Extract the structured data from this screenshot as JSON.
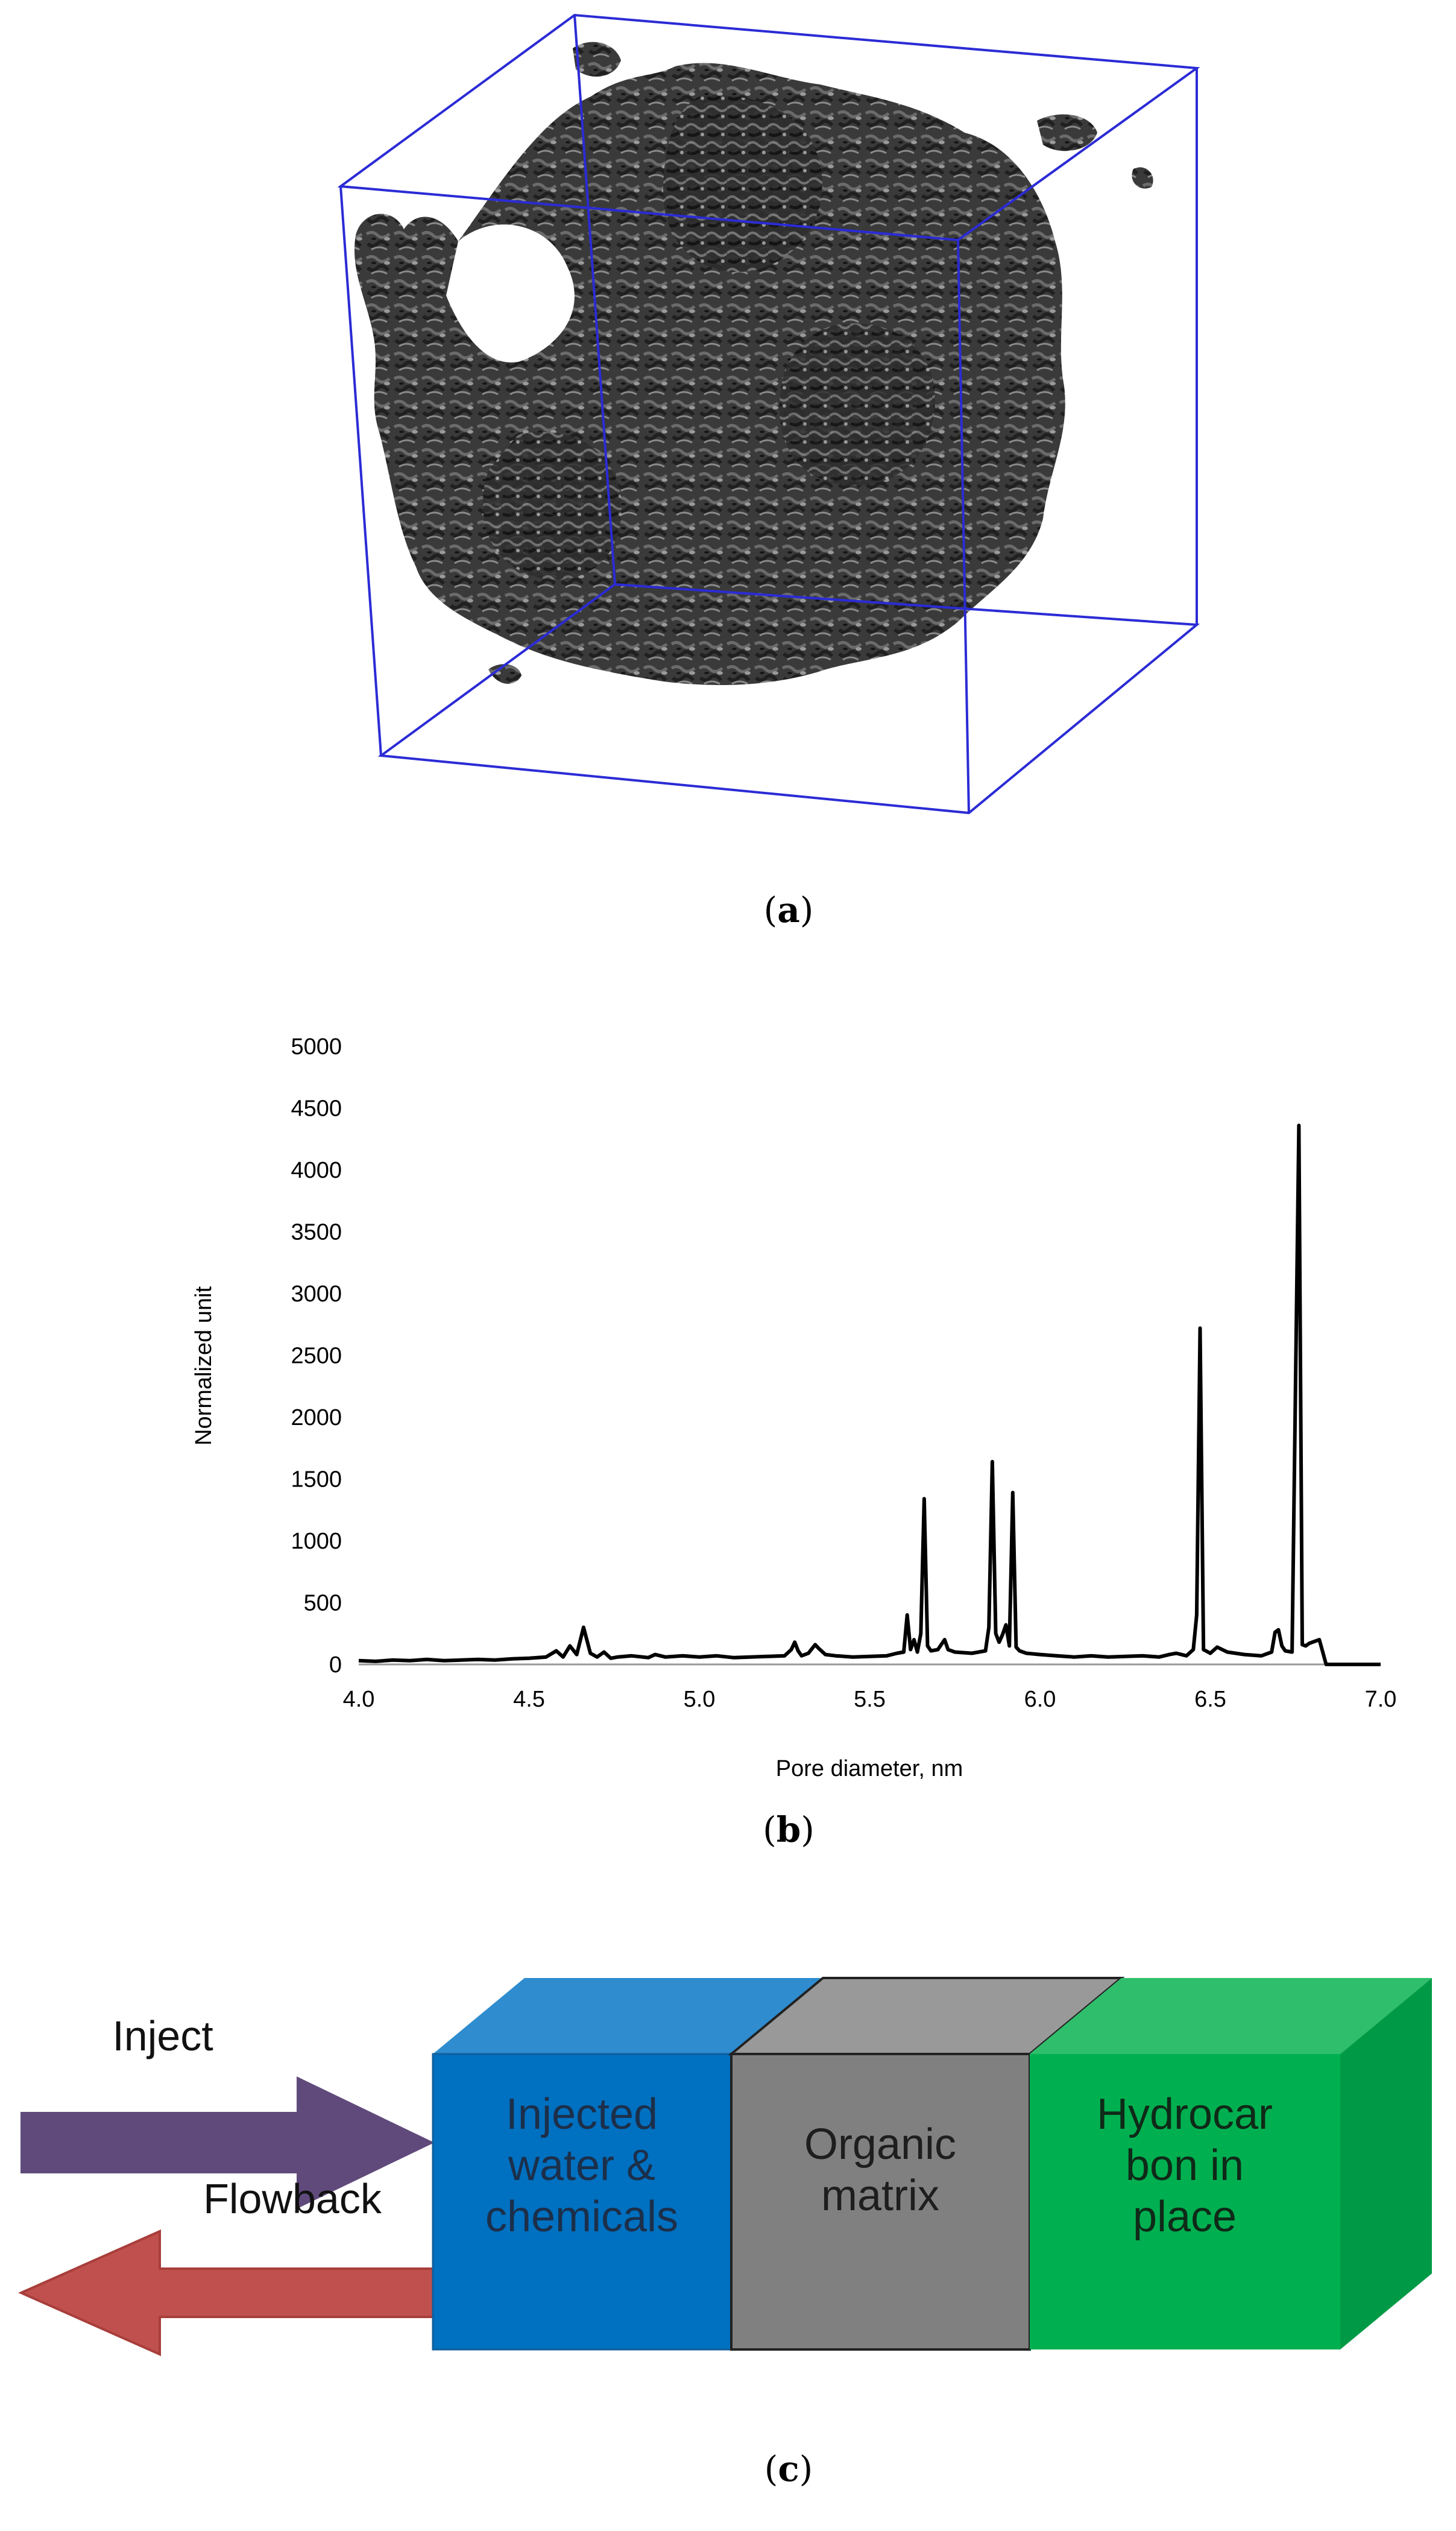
{
  "figure": {
    "panels": [
      {
        "label_open": "(",
        "label_letter": "a",
        "label_close": ")"
      },
      {
        "label_open": "(",
        "label_letter": "b",
        "label_close": ")"
      },
      {
        "label_open": "(",
        "label_letter": "c",
        "label_close": ")"
      }
    ]
  },
  "panel_c": {
    "inject_label": "Inject",
    "flowback_label": "Flowback",
    "blocks": [
      {
        "lines": [
          "Injected",
          "water &",
          "chemicals"
        ],
        "front": "#0070c0",
        "top": "#2e8ccf"
      },
      {
        "lines": [
          "Organic",
          "matrix"
        ],
        "front": "#808080",
        "top": "#999999"
      },
      {
        "lines": [
          "Hydrocar",
          "bon in",
          "place"
        ],
        "front": "#00b050",
        "top": "#2fbf6c",
        "side": "#009a46"
      }
    ],
    "inject_arrow_color": "#604a7b",
    "flowback_arrow_color": "#c0504d"
  },
  "chart_data": {
    "type": "line",
    "title": "",
    "xlabel": "Pore diameter, nm",
    "ylabel": "Normalized unit",
    "xlim": [
      4.0,
      7.0
    ],
    "ylim": [
      0,
      5000
    ],
    "xticks": [
      "4.0",
      "4.5",
      "5.0",
      "5.5",
      "6.0",
      "6.5",
      "7.0"
    ],
    "yticks": [
      "0",
      "500",
      "1000",
      "1500",
      "2000",
      "2500",
      "3000",
      "3500",
      "4000",
      "4500",
      "5000"
    ],
    "grid": false,
    "legend": "none",
    "series": [
      {
        "x": [
          4.0,
          4.05,
          4.1,
          4.15,
          4.2,
          4.25,
          4.3,
          4.35,
          4.4,
          4.45,
          4.5,
          4.55,
          4.58,
          4.6,
          4.62,
          4.64,
          4.66,
          4.68,
          4.7,
          4.72,
          4.74,
          4.76,
          4.8,
          4.85,
          4.87,
          4.9,
          4.95,
          5.0,
          5.05,
          5.1,
          5.15,
          5.2,
          5.25,
          5.27,
          5.28,
          5.29,
          5.3,
          5.32,
          5.34,
          5.35,
          5.37,
          5.4,
          5.45,
          5.5,
          5.55,
          5.58,
          5.6,
          5.61,
          5.62,
          5.63,
          5.64,
          5.65,
          5.66,
          5.67,
          5.68,
          5.7,
          5.72,
          5.73,
          5.75,
          5.8,
          5.84,
          5.85,
          5.86,
          5.87,
          5.88,
          5.89,
          5.9,
          5.91,
          5.92,
          5.93,
          5.94,
          5.96,
          6.0,
          6.05,
          6.1,
          6.15,
          6.2,
          6.25,
          6.3,
          6.35,
          6.38,
          6.4,
          6.43,
          6.45,
          6.46,
          6.47,
          6.48,
          6.5,
          6.52,
          6.55,
          6.6,
          6.65,
          6.68,
          6.69,
          6.7,
          6.71,
          6.72,
          6.74,
          6.76,
          6.77,
          6.78,
          6.79,
          6.8,
          6.82,
          6.83,
          6.84,
          6.85,
          6.9,
          6.95,
          7.0
        ],
        "y": [
          30,
          25,
          35,
          30,
          40,
          30,
          35,
          40,
          35,
          45,
          50,
          60,
          110,
          60,
          150,
          80,
          300,
          90,
          60,
          100,
          50,
          60,
          70,
          55,
          80,
          60,
          70,
          60,
          70,
          55,
          60,
          65,
          70,
          120,
          180,
          110,
          70,
          90,
          160,
          130,
          80,
          70,
          60,
          65,
          70,
          90,
          100,
          400,
          120,
          200,
          100,
          250,
          1340,
          150,
          110,
          120,
          200,
          120,
          100,
          90,
          110,
          300,
          1640,
          250,
          180,
          240,
          320,
          150,
          1390,
          140,
          110,
          90,
          80,
          70,
          60,
          70,
          60,
          65,
          70,
          60,
          80,
          90,
          70,
          120,
          400,
          2720,
          120,
          90,
          140,
          100,
          80,
          70,
          100,
          260,
          280,
          150,
          110,
          100,
          4360,
          160,
          150,
          170,
          180,
          200,
          100,
          0,
          0,
          0,
          0,
          0
        ]
      }
    ]
  }
}
